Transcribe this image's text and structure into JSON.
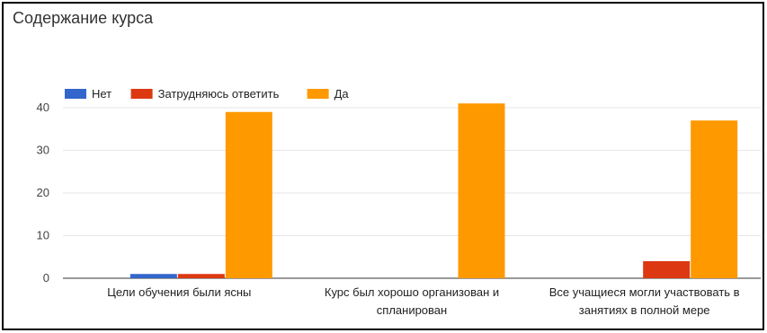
{
  "chart_data": {
    "type": "bar",
    "title": "Содержание курса",
    "categories": [
      [
        "Цели обучения были ясны"
      ],
      [
        "Курс был хорошо организован и",
        "спланирован"
      ],
      [
        "Все учащиеся могли участвовать в",
        "занятиях в полной мере"
      ]
    ],
    "series": [
      {
        "name": "Нет",
        "color": "#3366cc",
        "values": [
          1,
          0,
          0
        ]
      },
      {
        "name": "Затрудняюсь ответить",
        "color": "#dc3912",
        "values": [
          1,
          0,
          4
        ]
      },
      {
        "name": "Да",
        "color": "#ff9900",
        "values": [
          39,
          41,
          37
        ]
      }
    ],
    "ylim": [
      0,
      40
    ],
    "yticks": [
      0,
      10,
      20,
      30,
      40
    ],
    "legend": "top-left",
    "grid": true
  }
}
